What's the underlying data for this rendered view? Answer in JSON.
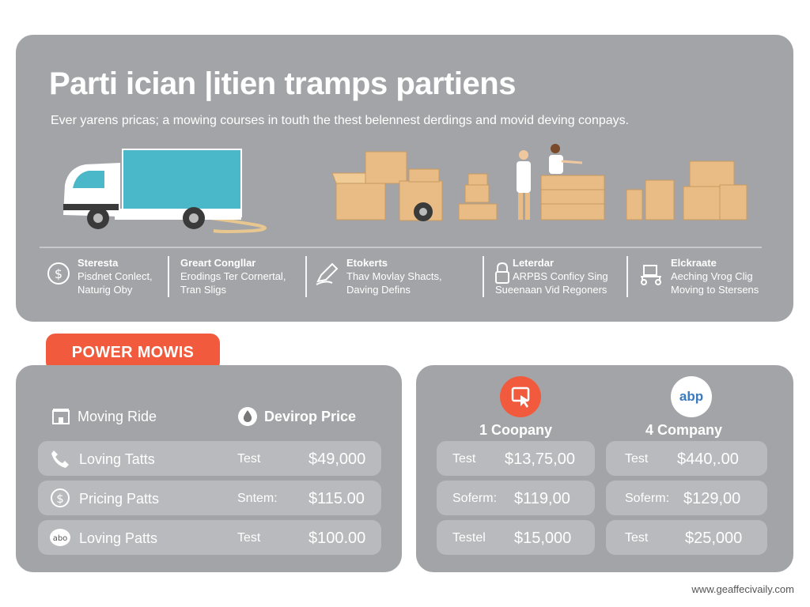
{
  "hero": {
    "title": "Parti ician |itien tramps partiens",
    "subtitle": "Ever yarens pricas; a mowing courses in touth the thest belennest derdings and movid deving conpays."
  },
  "features": [
    {
      "icon": "shield-icon",
      "heading": "Steresta",
      "lines": [
        "Pisdnet Conlect,",
        "Naturig Oby"
      ]
    },
    {
      "icon": "",
      "heading": "Greart Congllar",
      "lines": [
        "Erodings Ter Cornertal,",
        "Tran Sligs"
      ]
    },
    {
      "icon": "pen-icon",
      "heading": "Etokerts",
      "lines": [
        "Thav Movlay Shacts,",
        "Daving Defins"
      ]
    },
    {
      "icon": "lock-icon",
      "heading": "Leterdar",
      "lines": [
        "ARPBS Conficy Sing",
        "Sueenaan Vid Regoners"
      ]
    },
    {
      "icon": "dolly-icon",
      "heading": "Elckraate",
      "lines": [
        "Aeching Vrog Clig",
        "Moving to Stersens"
      ]
    }
  ],
  "badge": {
    "label": "POWER MOWIS"
  },
  "left_panel": {
    "col_left": {
      "icon": "building-icon",
      "label": "Moving Ride"
    },
    "col_right": {
      "icon": "drop-icon",
      "label": "Devirop Price"
    },
    "rows": [
      {
        "icon": "phone-icon",
        "label": "Loving Tatts",
        "type": "Test",
        "price": "$49,000"
      },
      {
        "icon": "dollar-icon",
        "label": "Pricing Patts",
        "type": "Sntem:",
        "price": "$115.00"
      },
      {
        "icon": "abp-logo-icon",
        "label": "Loving Patts",
        "type": "Test",
        "price": "$100.00"
      }
    ]
  },
  "right_panel": {
    "companies": [
      {
        "icon": "cursor-click-icon",
        "title": "1 Coopany",
        "rows": [
          {
            "type": "Test",
            "price": "$13,75,00"
          },
          {
            "type": "Soferm:",
            "price": "$119,00"
          },
          {
            "type": "Testel",
            "price": "$15,000"
          }
        ]
      },
      {
        "icon": "abp-logo-icon",
        "logo_text": "abp",
        "title": "4 Company",
        "rows": [
          {
            "type": "Test",
            "price": "$440,.00"
          },
          {
            "type": "Soferm:",
            "price": "$129,00"
          },
          {
            "type": "Test",
            "price": "$25,000"
          }
        ]
      }
    ]
  },
  "watermark": "www.geaffecivaily.com",
  "colors": {
    "panel": "#a3a4a7",
    "row": "#b9babd",
    "accent": "#f15a3c",
    "truck_cargo": "#4ab8c8",
    "box": "#e8bc84"
  }
}
